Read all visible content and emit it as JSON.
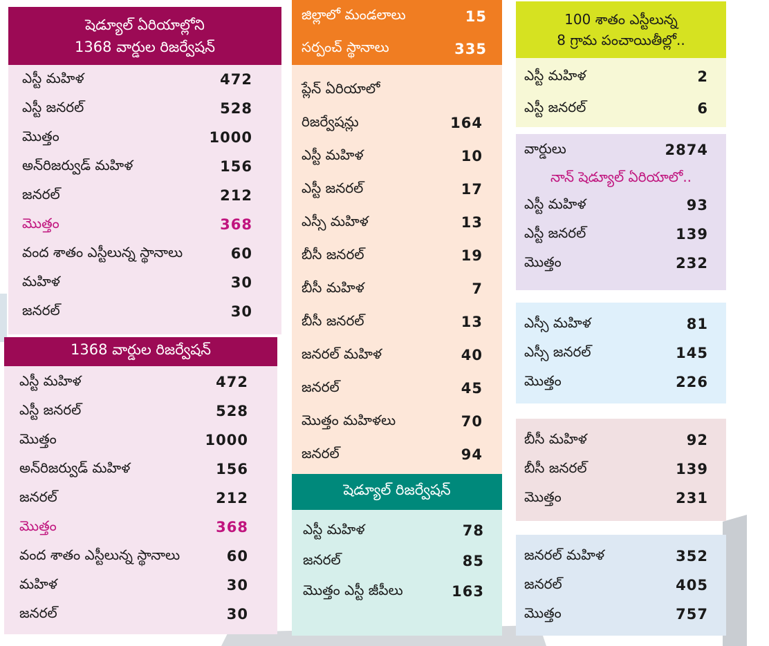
{
  "col1_top": {
    "header": [
      "షెడ్యూల్ ఏరియాల్లోని",
      "1368 వార్డుల రిజర్వేషన్"
    ],
    "rows": [
      {
        "label": "ఎస్టీ మహిళ",
        "value": "472"
      },
      {
        "label": "ఎస్టీ జనరల్",
        "value": "528"
      },
      {
        "label": "మొత్తం",
        "value": "1000"
      },
      {
        "label": "అన్‌రిజర్వుడ్ మహిళ",
        "value": "156"
      },
      {
        "label": "జనరల్",
        "value": "212"
      },
      {
        "label": "మొత్తం",
        "value": "368"
      },
      {
        "label": "వంద శాతం ఎస్టీలున్న స్థానాలు",
        "value": "60"
      },
      {
        "label": "మహిళ",
        "value": "30"
      },
      {
        "label": "జనరల్",
        "value": "30"
      }
    ]
  },
  "col1_bottom": {
    "header": [
      "1368 వార్డుల రిజర్వేషన్"
    ],
    "rows": [
      {
        "label": "ఎస్టీ మహిళ",
        "value": "472"
      },
      {
        "label": "ఎస్టీ జనరల్",
        "value": "528"
      },
      {
        "label": "మొత్తం",
        "value": "1000"
      },
      {
        "label": "అన్‌రిజర్వుడ్ మహిళ",
        "value": "156"
      },
      {
        "label": "జనరల్",
        "value": "212"
      },
      {
        "label": "మొత్తం",
        "value": "368"
      },
      {
        "label": "వంద శాతం ఎస్టీలున్న స్థానాలు",
        "value": "60"
      },
      {
        "label": "మహిళ",
        "value": "30"
      },
      {
        "label": "జనరల్",
        "value": "30"
      }
    ]
  },
  "col2_header": {
    "rows": [
      {
        "label": "జిల్లాలో మండలాలు",
        "value": "15"
      },
      {
        "label": "సర్పంచ్ స్థానాలు",
        "value": "335"
      }
    ]
  },
  "col2_body": {
    "title_line": "ప్లేన్ ఏరియాలో",
    "rows": [
      {
        "label": "రిజర్వేషన్లు",
        "value": "164"
      },
      {
        "label": "ఎస్టీ మహిళ",
        "value": "10"
      },
      {
        "label": "ఎస్టీ జనరల్",
        "value": "17"
      },
      {
        "label": "ఎస్సీ మహిళ",
        "value": "13"
      },
      {
        "label": "బీసీ జనరల్",
        "value": "19"
      },
      {
        "label": "బీసీ మహిళ",
        "value": "7"
      },
      {
        "label": "బీసీ జనరల్",
        "value": "13"
      },
      {
        "label": "జనరల్ మహిళ",
        "value": "40"
      },
      {
        "label": "జనరల్",
        "value": "45"
      },
      {
        "label": "మొత్తం మహిళలు",
        "value": "70"
      },
      {
        "label": "జనరల్",
        "value": "94"
      }
    ]
  },
  "col2_schedule": {
    "header": "షెడ్యూల్ రిజర్వేషన్",
    "rows": [
      {
        "label": "ఎస్టీ మహిళ",
        "value": "78"
      },
      {
        "label": "జనరల్",
        "value": "85"
      },
      {
        "label": "మొత్తం ఎస్టీ జీపీలు",
        "value": "163"
      }
    ]
  },
  "col3_hundred": {
    "header": [
      "100 శాతం ఎస్టీలున్న",
      "8 గ్రామ పంచాయితీల్లో.."
    ],
    "rows": [
      {
        "label": "ఎస్టీ మహిళ",
        "value": "2"
      },
      {
        "label": "ఎస్టీ జనరల్",
        "value": "6"
      }
    ]
  },
  "col3_nonsched": {
    "wards_label": "వార్డులు",
    "wards_value": "2874",
    "subtitle": "నాన్ షెడ్యూల్ ఏరియాలో..",
    "rows": [
      {
        "label": "ఎస్టీ మహిళ",
        "value": "93"
      },
      {
        "label": "ఎస్టీ జనరల్",
        "value": "139"
      },
      {
        "label": "మొత్తం",
        "value": "232"
      }
    ]
  },
  "col3_sc": {
    "rows": [
      {
        "label": "ఎస్సీ మహిళ",
        "value": "81"
      },
      {
        "label": "ఎస్సీ జనరల్",
        "value": "145"
      },
      {
        "label": "మొత్తం",
        "value": "226"
      }
    ]
  },
  "col3_bc": {
    "rows": [
      {
        "label": "బీసీ మహిళ",
        "value": "92"
      },
      {
        "label": "బీసీ జనరల్",
        "value": "139"
      },
      {
        "label": "మొత్తం",
        "value": "231"
      }
    ]
  },
  "col3_general": {
    "rows": [
      {
        "label": "జనరల్ మహిళ",
        "value": "352"
      },
      {
        "label": "జనరల్",
        "value": "405"
      },
      {
        "label": "మొత్తం",
        "value": "757"
      }
    ]
  },
  "colors": {
    "maroon": "#9c0a55",
    "pink_bg": "#f5e4ef",
    "orange": "#f07d22",
    "peach_bg": "#fde7d9",
    "teal": "#00897b",
    "teal_bg": "#d6efeb",
    "lime": "#d6e221",
    "lime_bg": "#f7f8d6",
    "lavender_bg": "#e7def0",
    "lightblue_bg": "#dff0fb",
    "rose_bg": "#f1e0e2",
    "steelblue_bg": "#dde8f3",
    "highlight_pink": "#c0147e"
  }
}
